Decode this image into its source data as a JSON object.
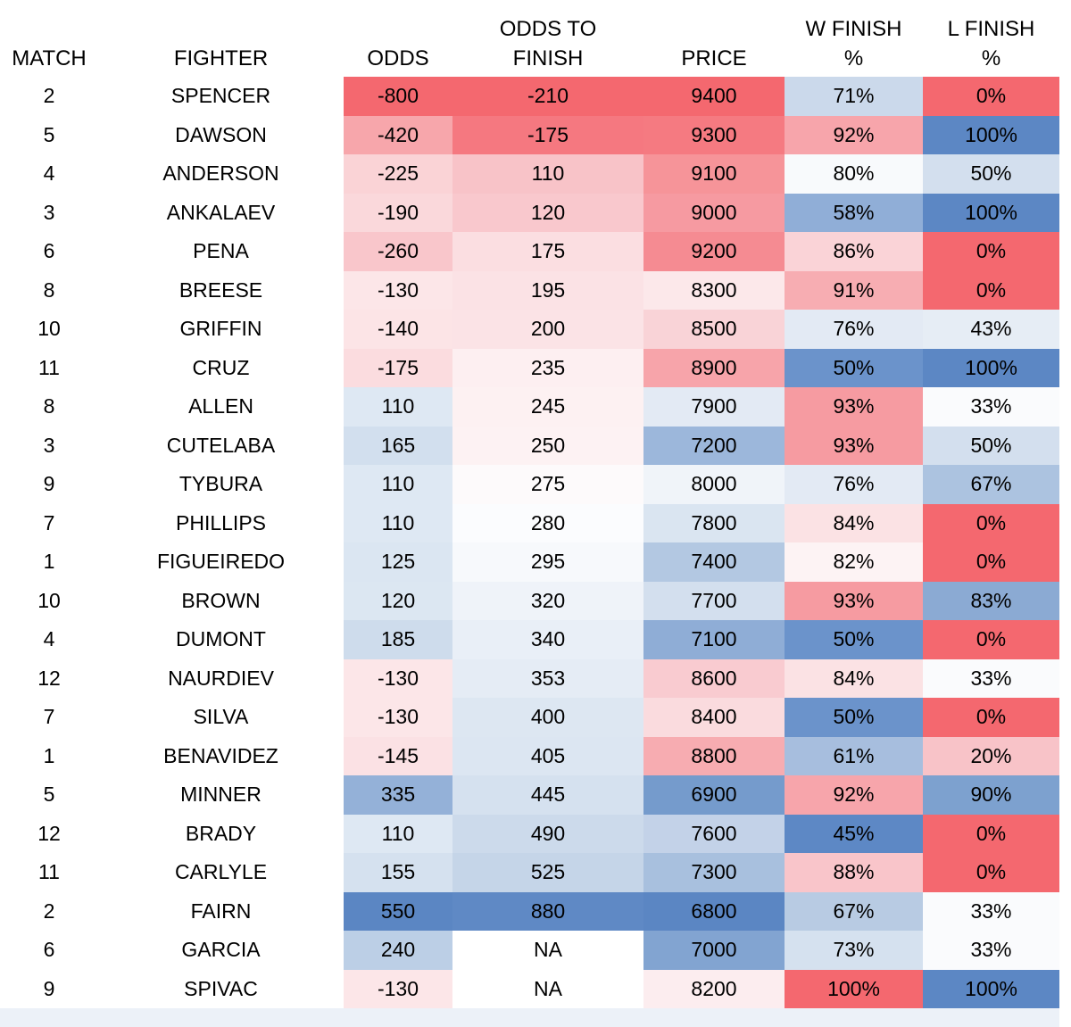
{
  "header": {
    "columns": [
      {
        "key": "match",
        "line1": "",
        "line2": "MATCH"
      },
      {
        "key": "fighter",
        "line1": "",
        "line2": "FIGHTER"
      },
      {
        "key": "odds",
        "line1": "",
        "line2": "ODDS"
      },
      {
        "key": "odds_to_finish",
        "line1": "ODDS TO",
        "line2": "FINISH"
      },
      {
        "key": "price",
        "line1": "",
        "line2": "PRICE"
      },
      {
        "key": "w_finish",
        "line1": "W FINISH",
        "line2": "%"
      },
      {
        "key": "l_finish",
        "line1": "L FINISH",
        "line2": "%"
      }
    ]
  },
  "colors": {
    "text": "#000000",
    "background": "#FFFFFF",
    "scale_red": "#F4686F",
    "scale_white": "#FCFCFF",
    "scale_blue": "#5B86C3",
    "footer_strip": "#ECF1F8"
  },
  "rows": [
    {
      "match": "2",
      "fighter": "SPENCER",
      "odds": "-800",
      "odds_to_finish": "-210",
      "price": "9400",
      "w_finish": "71%",
      "l_finish": "0%",
      "fills": {
        "odds": "#F4686F",
        "odds_to_finish": "#F4686F",
        "price": "#F4686F",
        "w_finish": "#CBD9EB",
        "l_finish": "#F4686F"
      }
    },
    {
      "match": "5",
      "fighter": "DAWSON",
      "odds": "-420",
      "odds_to_finish": "-175",
      "price": "9300",
      "w_finish": "92%",
      "l_finish": "100%",
      "fills": {
        "odds": "#F7A6AB",
        "odds_to_finish": "#F57880",
        "price": "#F57A81",
        "w_finish": "#F7A5AB",
        "l_finish": "#5C87C4"
      }
    },
    {
      "match": "4",
      "fighter": "ANDERSON",
      "odds": "-225",
      "odds_to_finish": "110",
      "price": "9100",
      "w_finish": "80%",
      "l_finish": "50%",
      "fills": {
        "odds": "#FAD3D6",
        "odds_to_finish": "#F8C3C8",
        "price": "#F69499",
        "w_finish": "#F8FAFC",
        "l_finish": "#D3DFEE"
      }
    },
    {
      "match": "3",
      "fighter": "ANKALAEV",
      "odds": "-190",
      "odds_to_finish": "120",
      "price": "9000",
      "w_finish": "58%",
      "l_finish": "100%",
      "fills": {
        "odds": "#FAD8DB",
        "odds_to_finish": "#F9C8CD",
        "price": "#F69AA1",
        "w_finish": "#90AED7",
        "l_finish": "#5C87C4"
      }
    },
    {
      "match": "6",
      "fighter": "PENA",
      "odds": "-260",
      "odds_to_finish": "175",
      "price": "9200",
      "w_finish": "86%",
      "l_finish": "0%",
      "fills": {
        "odds": "#F9C6CB",
        "odds_to_finish": "#FBDEE1",
        "price": "#F58B92",
        "w_finish": "#FAD3D7",
        "l_finish": "#F4686F"
      }
    },
    {
      "match": "8",
      "fighter": "BREESE",
      "odds": "-130",
      "odds_to_finish": "195",
      "price": "8300",
      "w_finish": "91%",
      "l_finish": "0%",
      "fills": {
        "odds": "#FCE6E8",
        "odds_to_finish": "#FBE2E5",
        "price": "#FCE8EA",
        "w_finish": "#F7ADB2",
        "l_finish": "#F4686F"
      }
    },
    {
      "match": "10",
      "fighter": "GRIFFIN",
      "odds": "-140",
      "odds_to_finish": "200",
      "price": "8500",
      "w_finish": "76%",
      "l_finish": "43%",
      "fills": {
        "odds": "#FCE4E6",
        "odds_to_finish": "#FBE3E6",
        "price": "#F9D3D7",
        "w_finish": "#E3EAF4",
        "l_finish": "#E6EDF5"
      }
    },
    {
      "match": "11",
      "fighter": "CRUZ",
      "odds": "-175",
      "odds_to_finish": "235",
      "price": "8900",
      "w_finish": "50%",
      "l_finish": "100%",
      "fills": {
        "odds": "#FBDCDF",
        "odds_to_finish": "#FDEFF1",
        "price": "#F7A4AA",
        "w_finish": "#6B93CB",
        "l_finish": "#5C87C4"
      }
    },
    {
      "match": "8",
      "fighter": "ALLEN",
      "odds": "110",
      "odds_to_finish": "245",
      "price": "7900",
      "w_finish": "93%",
      "l_finish": "33%",
      "fills": {
        "odds": "#DEE8F3",
        "odds_to_finish": "#FDF1F2",
        "price": "#E3EAF4",
        "w_finish": "#F69BA1",
        "l_finish": "#FAFBFD"
      }
    },
    {
      "match": "3",
      "fighter": "CUTELABA",
      "odds": "165",
      "odds_to_finish": "250",
      "price": "7200",
      "w_finish": "93%",
      "l_finish": "50%",
      "fills": {
        "odds": "#D2DFEE",
        "odds_to_finish": "#FDF2F3",
        "price": "#9CB7DB",
        "w_finish": "#F69BA1",
        "l_finish": "#D3DFEE"
      }
    },
    {
      "match": "9",
      "fighter": "TYBURA",
      "odds": "110",
      "odds_to_finish": "275",
      "price": "8000",
      "w_finish": "76%",
      "l_finish": "67%",
      "fills": {
        "odds": "#DEE8F3",
        "odds_to_finish": "#FDFAFB",
        "price": "#F0F4F9",
        "w_finish": "#E3EAF4",
        "l_finish": "#ACC3E0"
      }
    },
    {
      "match": "7",
      "fighter": "PHILLIPS",
      "odds": "110",
      "odds_to_finish": "280",
      "price": "7800",
      "w_finish": "84%",
      "l_finish": "0%",
      "fills": {
        "odds": "#DEE8F3",
        "odds_to_finish": "#FBFCFE",
        "price": "#DAE5F1",
        "w_finish": "#FBE2E4",
        "l_finish": "#F4686F"
      }
    },
    {
      "match": "1",
      "fighter": "FIGUEIREDO",
      "odds": "125",
      "odds_to_finish": "295",
      "price": "7400",
      "w_finish": "82%",
      "l_finish": "0%",
      "fills": {
        "odds": "#DBE6F2",
        "odds_to_finish": "#F7F9FC",
        "price": "#B3C8E2",
        "w_finish": "#FDF3F4",
        "l_finish": "#F4686F"
      }
    },
    {
      "match": "10",
      "fighter": "BROWN",
      "odds": "120",
      "odds_to_finish": "320",
      "price": "7700",
      "w_finish": "93%",
      "l_finish": "83%",
      "fills": {
        "odds": "#DCE7F2",
        "odds_to_finish": "#EFF3F9",
        "price": "#D3DFEE",
        "w_finish": "#F69BA1",
        "l_finish": "#8BAAD3"
      }
    },
    {
      "match": "4",
      "fighter": "DUMONT",
      "odds": "185",
      "odds_to_finish": "340",
      "price": "7100",
      "w_finish": "50%",
      "l_finish": "0%",
      "fills": {
        "odds": "#CEDCEC",
        "odds_to_finish": "#E9EFF7",
        "price": "#8FADD6",
        "w_finish": "#6B93CB",
        "l_finish": "#F4686F"
      }
    },
    {
      "match": "12",
      "fighter": "NAURDIEV",
      "odds": "-130",
      "odds_to_finish": "353",
      "price": "8600",
      "w_finish": "84%",
      "l_finish": "33%",
      "fills": {
        "odds": "#FCE6E8",
        "odds_to_finish": "#E5ECF5",
        "price": "#F9CBD0",
        "w_finish": "#FBE2E4",
        "l_finish": "#FAFBFD"
      }
    },
    {
      "match": "7",
      "fighter": "SILVA",
      "odds": "-130",
      "odds_to_finish": "400",
      "price": "8400",
      "w_finish": "50%",
      "l_finish": "0%",
      "fills": {
        "odds": "#FCE6E8",
        "odds_to_finish": "#DDE7F2",
        "price": "#FADBDE",
        "w_finish": "#6B93CB",
        "l_finish": "#F4686F"
      }
    },
    {
      "match": "1",
      "fighter": "BENAVIDEZ",
      "odds": "-145",
      "odds_to_finish": "405",
      "price": "8800",
      "w_finish": "61%",
      "l_finish": "20%",
      "fills": {
        "odds": "#FBE1E4",
        "odds_to_finish": "#DCE6F2",
        "price": "#F7ACB1",
        "w_finish": "#A7BEDE",
        "l_finish": "#F8C3C8"
      }
    },
    {
      "match": "5",
      "fighter": "MINNER",
      "odds": "335",
      "odds_to_finish": "445",
      "price": "6900",
      "w_finish": "92%",
      "l_finish": "90%",
      "fills": {
        "odds": "#94B1D8",
        "odds_to_finish": "#D5E1EF",
        "price": "#759BCC",
        "w_finish": "#F7A5AB",
        "l_finish": "#7DA1CF"
      }
    },
    {
      "match": "12",
      "fighter": "BRADY",
      "odds": "110",
      "odds_to_finish": "490",
      "price": "7600",
      "w_finish": "45%",
      "l_finish": "0%",
      "fills": {
        "odds": "#DEE8F3",
        "odds_to_finish": "#CCDAEB",
        "price": "#C3D2E8",
        "w_finish": "#5D88C5",
        "l_finish": "#F4686F"
      }
    },
    {
      "match": "11",
      "fighter": "CARLYLE",
      "odds": "155",
      "odds_to_finish": "525",
      "price": "7300",
      "w_finish": "88%",
      "l_finish": "0%",
      "fills": {
        "odds": "#D5E1EF",
        "odds_to_finish": "#C5D5E8",
        "price": "#A8C0DE",
        "w_finish": "#F9C5CA",
        "l_finish": "#F4686F"
      }
    },
    {
      "match": "2",
      "fighter": "FAIRN",
      "odds": "550",
      "odds_to_finish": "880",
      "price": "6800",
      "w_finish": "67%",
      "l_finish": "33%",
      "fills": {
        "odds": "#5B86C3",
        "odds_to_finish": "#5F89C5",
        "price": "#5B86C3",
        "w_finish": "#B8CBE3",
        "l_finish": "#FAFBFD"
      }
    },
    {
      "match": "6",
      "fighter": "GARCIA",
      "odds": "240",
      "odds_to_finish": "NA",
      "price": "7000",
      "w_finish": "73%",
      "l_finish": "33%",
      "fills": {
        "odds": "#BCCFE6",
        "odds_to_finish": "#FFFFFF",
        "price": "#82A4D1",
        "w_finish": "#D5E1EF",
        "l_finish": "#FAFBFD"
      }
    },
    {
      "match": "9",
      "fighter": "SPIVAC",
      "odds": "-130",
      "odds_to_finish": "NA",
      "price": "8200",
      "w_finish": "100%",
      "l_finish": "100%",
      "fills": {
        "odds": "#FCE6E8",
        "odds_to_finish": "#FFFFFF",
        "price": "#FCEDEF",
        "w_finish": "#F4686F",
        "l_finish": "#5C87C4"
      }
    }
  ]
}
